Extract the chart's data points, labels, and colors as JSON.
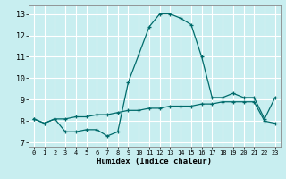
{
  "xlabel": "Humidex (Indice chaleur)",
  "ylabel": "",
  "bg_color": "#c8eef0",
  "grid_color": "#ffffff",
  "line_color": "#006b6b",
  "xlim": [
    -0.5,
    23.5
  ],
  "ylim": [
    6.8,
    13.4
  ],
  "yticks": [
    7,
    8,
    9,
    10,
    11,
    12,
    13
  ],
  "xticks": [
    0,
    1,
    2,
    3,
    4,
    5,
    6,
    7,
    8,
    9,
    10,
    11,
    12,
    13,
    14,
    15,
    16,
    17,
    18,
    19,
    20,
    21,
    22,
    23
  ],
  "series1_x": [
    0,
    1,
    2,
    3,
    4,
    5,
    6,
    7,
    8,
    9,
    10,
    11,
    12,
    13,
    14,
    15,
    16,
    17,
    18,
    19,
    20,
    21,
    22,
    23
  ],
  "series1_y": [
    8.1,
    7.9,
    8.1,
    7.5,
    7.5,
    7.6,
    7.6,
    7.3,
    7.5,
    9.8,
    11.1,
    12.4,
    13.0,
    13.0,
    12.8,
    12.5,
    11.0,
    9.1,
    9.1,
    9.3,
    9.1,
    9.1,
    8.1,
    9.1
  ],
  "series2_x": [
    0,
    1,
    2,
    3,
    4,
    5,
    6,
    7,
    8,
    9,
    10,
    11,
    12,
    13,
    14,
    15,
    16,
    17,
    18,
    19,
    20,
    21,
    22,
    23
  ],
  "series2_y": [
    8.1,
    7.9,
    8.1,
    8.1,
    8.2,
    8.2,
    8.3,
    8.3,
    8.4,
    8.5,
    8.5,
    8.6,
    8.6,
    8.7,
    8.7,
    8.7,
    8.8,
    8.8,
    8.9,
    8.9,
    8.9,
    8.9,
    8.0,
    7.9
  ]
}
